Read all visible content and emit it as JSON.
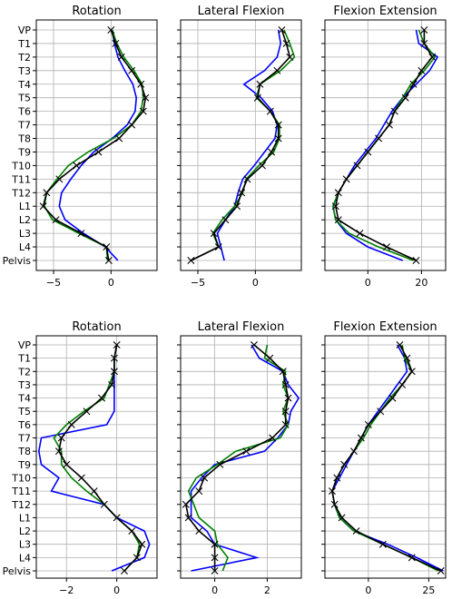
{
  "chart_data": [
    {
      "type": "line",
      "title": "Rotation",
      "row": 0,
      "col": 0,
      "categories": [
        "VP",
        "T1",
        "T2",
        "T3",
        "T4",
        "T5",
        "T6",
        "T7",
        "T8",
        "T9",
        "T10",
        "T11",
        "T12",
        "L1",
        "L2",
        "L3",
        "L4",
        "Pelvis"
      ],
      "xticks": [
        -5,
        0
      ],
      "xlim": [
        -6.5,
        4
      ],
      "grid": true,
      "series": [
        {
          "color": "#0000ff",
          "values": [
            0.1,
            0.3,
            0.6,
            1.2,
            1.9,
            2.2,
            2.1,
            1.4,
            0.1,
            -1.5,
            -2.6,
            -3.5,
            -4.3,
            -4.5,
            -4.0,
            -2.4,
            -0.5,
            0.6
          ]
        },
        {
          "color": "#008000",
          "values": [
            0.1,
            0.5,
            1.1,
            2.0,
            2.7,
            2.8,
            2.6,
            1.8,
            0.2,
            -2.0,
            -3.7,
            -4.7,
            -5.6,
            -5.8,
            -5.1,
            -2.8,
            -0.4,
            -0.3
          ]
        },
        {
          "color": "#000000",
          "marker": "x",
          "values": [
            0.0,
            0.4,
            0.9,
            1.8,
            2.6,
            3.0,
            2.8,
            1.8,
            0.7,
            -1.1,
            -3.0,
            -4.5,
            -5.6,
            -5.9,
            -4.8,
            -2.6,
            -0.4,
            -0.2
          ]
        }
      ]
    },
    {
      "type": "line",
      "title": "Lateral Flexion",
      "row": 0,
      "col": 1,
      "categories": [
        "VP",
        "T1",
        "T2",
        "T3",
        "T4",
        "T5",
        "T6",
        "T7",
        "T8",
        "T9",
        "T10",
        "T11",
        "T12",
        "L1",
        "L2",
        "L3",
        "L4",
        "Pelvis"
      ],
      "xticks": [
        -5,
        0
      ],
      "xlim": [
        -6.5,
        4
      ],
      "grid": true,
      "series": [
        {
          "color": "#0000ff",
          "values": [
            2.0,
            2.2,
            1.9,
            0.8,
            -1.0,
            0.5,
            1.5,
            1.9,
            1.7,
            0.8,
            -0.1,
            -1.1,
            -1.5,
            -1.8,
            -2.6,
            -3.3,
            -3.0,
            -2.7
          ]
        },
        {
          "color": "#008000",
          "values": [
            2.5,
            3.0,
            3.4,
            2.2,
            0.4,
            0.1,
            1.3,
            2.1,
            2.1,
            1.6,
            0.3,
            -0.8,
            -1.1,
            -1.8,
            -2.9,
            -3.7,
            -3.2,
            -5.6
          ]
        },
        {
          "color": "#000000",
          "marker": "x",
          "values": [
            2.3,
            2.7,
            3.0,
            1.9,
            0.4,
            0.2,
            1.3,
            2.0,
            2.0,
            1.4,
            0.6,
            -0.7,
            -1.2,
            -1.6,
            -2.6,
            -3.6,
            -3.2,
            -5.6
          ]
        }
      ]
    },
    {
      "type": "line",
      "title": "Flexion Extension",
      "row": 0,
      "col": 2,
      "categories": [
        "VP",
        "T1",
        "T2",
        "T3",
        "T4",
        "T5",
        "T6",
        "T7",
        "T8",
        "T9",
        "T10",
        "T11",
        "T12",
        "L1",
        "L2",
        "L3",
        "L4",
        "Pelvis"
      ],
      "xticks": [
        0,
        20
      ],
      "xlim": [
        -16,
        29
      ],
      "grid": true,
      "series": [
        {
          "color": "#0000ff",
          "values": [
            18,
            19,
            26,
            23,
            18,
            13,
            9,
            6,
            3,
            -1,
            -5,
            -8,
            -11,
            -13,
            -12,
            -8,
            0,
            13
          ]
        },
        {
          "color": "#008000",
          "values": [
            19,
            21,
            25,
            21,
            16,
            13,
            10,
            8,
            4,
            0,
            -4,
            -8,
            -11,
            -13,
            -12,
            -7,
            4,
            17
          ]
        },
        {
          "color": "#000000",
          "marker": "x",
          "values": [
            21,
            21,
            24,
            20,
            17,
            14,
            10,
            8,
            4,
            0,
            -4,
            -8,
            -11,
            -12,
            -11,
            -3,
            7,
            18
          ]
        }
      ]
    },
    {
      "type": "line",
      "title": "Rotation",
      "row": 1,
      "col": 0,
      "categories": [
        "VP",
        "T1",
        "T2",
        "T3",
        "T4",
        "T5",
        "T6",
        "T7",
        "T8",
        "T9",
        "T10",
        "T11",
        "T12",
        "L1",
        "L2",
        "L3",
        "L4",
        "Pelvis"
      ],
      "xticks": [
        -2,
        0
      ],
      "xlim": [
        -3.2,
        1.6
      ],
      "grid": true,
      "series": [
        {
          "color": "#0000ff",
          "values": [
            0.0,
            -0.1,
            -0.1,
            -0.1,
            -0.1,
            -0.1,
            -0.4,
            -3.0,
            -3.1,
            -3.0,
            -2.3,
            -2.6,
            -0.5,
            0.0,
            1.1,
            1.3,
            1.1,
            -0.2
          ]
        },
        {
          "color": "#008000",
          "values": [
            0.0,
            -0.1,
            -0.1,
            -0.3,
            -0.5,
            -1.3,
            -2.0,
            -2.5,
            -2.2,
            -2.2,
            -1.8,
            -1.2,
            -0.5,
            0.0,
            0.6,
            0.9,
            0.8,
            0.3
          ]
        },
        {
          "color": "#000000",
          "marker": "x",
          "values": [
            0.0,
            -0.1,
            -0.1,
            -0.2,
            -0.6,
            -1.2,
            -1.8,
            -2.2,
            -2.3,
            -2.0,
            -1.4,
            -0.9,
            -0.5,
            0.0,
            0.6,
            1.0,
            0.8,
            0.3
          ]
        }
      ]
    },
    {
      "type": "line",
      "title": "Lateral Flexion",
      "row": 1,
      "col": 1,
      "categories": [
        "VP",
        "T1",
        "T2",
        "T3",
        "T4",
        "T5",
        "T6",
        "T7",
        "T8",
        "T9",
        "T10",
        "T11",
        "T12",
        "L1",
        "L2",
        "L3",
        "L4",
        "Pelvis"
      ],
      "xticks": [
        0,
        2
      ],
      "xlim": [
        -1.3,
        3.3
      ],
      "grid": true,
      "series": [
        {
          "color": "#0000ff",
          "values": [
            1.4,
            1.7,
            2.6,
            2.8,
            3.2,
            2.9,
            2.8,
            2.4,
            1.9,
            0.0,
            -0.5,
            -0.9,
            -0.9,
            -0.9,
            -0.3,
            0.0,
            1.6,
            -0.9
          ]
        },
        {
          "color": "#008000",
          "values": [
            2.0,
            1.9,
            2.7,
            2.6,
            2.8,
            2.6,
            2.8,
            2.5,
            0.8,
            0.1,
            -0.7,
            -1.0,
            -0.8,
            -0.6,
            0.0,
            0.1,
            0.5,
            0.3
          ]
        },
        {
          "color": "#000000",
          "marker": "x",
          "values": [
            1.5,
            2.1,
            2.6,
            2.7,
            2.8,
            2.7,
            2.7,
            2.2,
            1.2,
            0.2,
            -0.4,
            -0.6,
            -1.1,
            -1.0,
            -0.6,
            0.0,
            0.0,
            0.0
          ]
        }
      ]
    },
    {
      "type": "line",
      "title": "Flexion Extension",
      "row": 1,
      "col": 2,
      "categories": [
        "VP",
        "T1",
        "T2",
        "T3",
        "T4",
        "T5",
        "T6",
        "T7",
        "T8",
        "T9",
        "T10",
        "T11",
        "T12",
        "L1",
        "L2",
        "L3",
        "L4",
        "Pelvis"
      ],
      "xticks": [
        0,
        25
      ],
      "xlim": [
        -18,
        32
      ],
      "grid": true,
      "series": [
        {
          "color": "#0000ff",
          "values": [
            12,
            15,
            16,
            12,
            8,
            4,
            0,
            -3,
            -6,
            -9,
            -12,
            -15,
            -14,
            -12,
            -6,
            8,
            20,
            31
          ]
        },
        {
          "color": "#008000",
          "values": [
            14,
            15,
            18,
            14,
            9,
            5,
            1,
            -2,
            -6,
            -10,
            -13,
            -15,
            -14,
            -12,
            -6,
            6,
            18,
            29
          ]
        },
        {
          "color": "#000000",
          "marker": "x",
          "values": [
            13,
            16,
            18,
            14,
            10,
            5,
            0,
            -3,
            -6,
            -10,
            -13,
            -15,
            -14,
            -11,
            -5,
            6,
            18,
            30
          ]
        }
      ]
    }
  ]
}
